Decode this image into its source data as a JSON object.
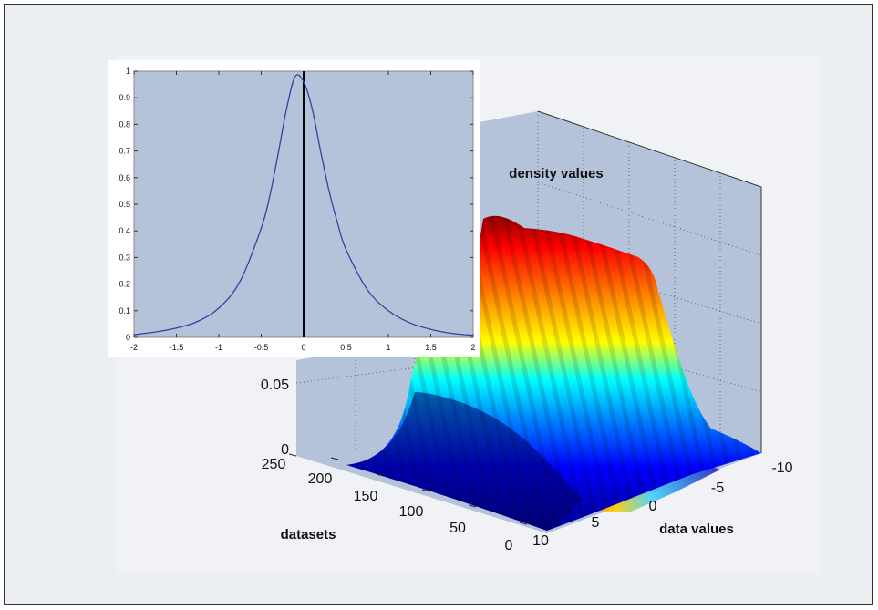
{
  "chart_data": [
    {
      "type": "surface3d",
      "title": "",
      "zlabel": "density values",
      "xlabel": "data values",
      "ylabel": "datasets",
      "x_ticks": [
        "-10",
        "-5",
        "0",
        "5",
        "10"
      ],
      "y_ticks": [
        "0",
        "50",
        "100",
        "150",
        "200",
        "250"
      ],
      "z_ticks": [
        "0",
        "0.05"
      ],
      "xlim": [
        -10,
        10
      ],
      "ylim": [
        0,
        250
      ],
      "zlim": [
        0,
        0.1
      ],
      "colormap": [
        "#00008f",
        "#0000ff",
        "#0080ff",
        "#00ffff",
        "#80ff80",
        "#ffff00",
        "#ff8000",
        "#ff0000",
        "#800000"
      ],
      "wall_color": "#b4c3da"
    },
    {
      "type": "line",
      "title": "",
      "x": [
        -2,
        -1.75,
        -1.5,
        -1.25,
        -1,
        -0.75,
        -0.5,
        -0.4,
        -0.3,
        -0.2,
        -0.1,
        0,
        0.1,
        0.2,
        0.3,
        0.4,
        0.5,
        0.75,
        1,
        1.25,
        1.5,
        1.75,
        2
      ],
      "y": [
        0.01,
        0.02,
        0.035,
        0.06,
        0.11,
        0.21,
        0.41,
        0.53,
        0.69,
        0.86,
        0.98,
        0.96,
        0.86,
        0.7,
        0.55,
        0.43,
        0.33,
        0.18,
        0.1,
        0.055,
        0.03,
        0.015,
        0.008
      ],
      "x_ticks": [
        "-2",
        "-1.5",
        "-1",
        "-0.5",
        "0",
        "0.5",
        "1",
        "1.5",
        "2"
      ],
      "y_ticks": [
        "0",
        "0.1",
        "0.2",
        "0.3",
        "0.4",
        "0.5",
        "0.6",
        "0.7",
        "0.8",
        "0.9",
        "1"
      ],
      "xlim": [
        -2,
        2
      ],
      "ylim": [
        0,
        1
      ],
      "vline_x": 0,
      "line_color": "#3b3fa0",
      "background": "#b4c3da"
    }
  ]
}
